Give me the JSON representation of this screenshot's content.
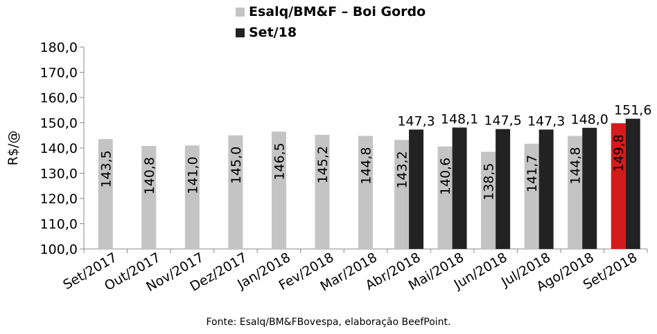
{
  "chart_data": {
    "type": "bar",
    "ylabel": "R$/@",
    "ylim": [
      100,
      180
    ],
    "yticks": [
      "100,0",
      "110,0",
      "120,0",
      "130,0",
      "140,0",
      "150,0",
      "160,0",
      "170,0",
      "180,0"
    ],
    "categories": [
      "Set/2017",
      "Out/2017",
      "Nov/2017",
      "Dez/2017",
      "Jan/2018",
      "Fev/2018",
      "Mar/2018",
      "Abr/2018",
      "Mai/2018",
      "Jun/2018",
      "Jul/2018",
      "Ago/2018",
      "Set/2018"
    ],
    "legend_position": "top",
    "series": [
      {
        "name": "Esalq/BM&F – Boi Gordo",
        "color": "#c4c4c4",
        "values": [
          143.5,
          140.8,
          141.0,
          145.0,
          146.5,
          145.2,
          144.8,
          143.2,
          140.6,
          138.5,
          141.7,
          144.8,
          149.8
        ],
        "labels": [
          "143,5",
          "140,8",
          "141,0",
          "145,0",
          "146,5",
          "145,2",
          "144,8",
          "143,2",
          "140,6",
          "138,5",
          "141,7",
          "144,8",
          "149,8"
        ],
        "highlight": {
          "index": 12,
          "color": "#d41b1b"
        }
      },
      {
        "name": "Set/18",
        "color": "#222222",
        "values": [
          null,
          null,
          null,
          null,
          null,
          null,
          null,
          147.3,
          148.1,
          147.5,
          147.3,
          148.0,
          151.6
        ],
        "labels": [
          "",
          "",
          "",
          "",
          "",
          "",
          "",
          "147,3",
          "148,1",
          "147,5",
          "147,3",
          "148,0",
          "151,6"
        ]
      }
    ]
  },
  "source": "Fonte: Esalq/BM&FBovespa, elaboração BeefPoint."
}
